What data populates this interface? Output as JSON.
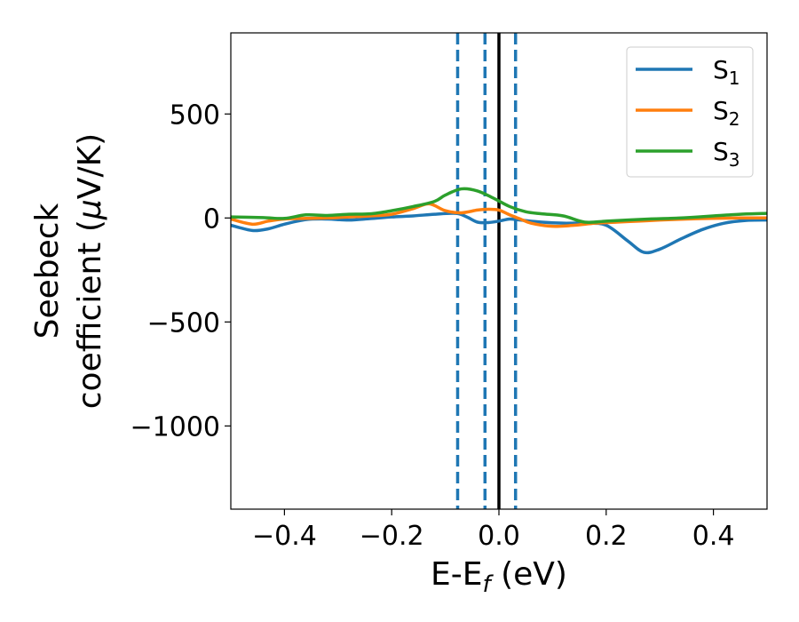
{
  "chart_data": {
    "type": "line",
    "title": "",
    "xlabel": "E-E",
    "xlabel_sub": "f",
    "xlabel_unit": " (eV)",
    "ylabel_line1": "Seebeck",
    "ylabel_line2": "coefficient  (",
    "ylabel_mu": "μ",
    "ylabel_unit": "V/K)",
    "xlim": [
      -0.5,
      0.5
    ],
    "ylim": [
      -1400,
      890
    ],
    "xticks": [
      -0.4,
      -0.2,
      0.0,
      0.2,
      0.4
    ],
    "xtick_labels": [
      "−0.4",
      "−0.2",
      "0.0",
      "0.2",
      "0.4"
    ],
    "yticks": [
      500,
      0,
      -500,
      -1000
    ],
    "ytick_labels": [
      "500",
      "0",
      "−500",
      "−1000"
    ],
    "grid": false,
    "legend_position": "top-right",
    "vlines": [
      {
        "x": -0.077,
        "style": "dashed",
        "color": "#1f77b4"
      },
      {
        "x": -0.026,
        "style": "dashed",
        "color": "#1f77b4"
      },
      {
        "x": 0.0,
        "style": "solid",
        "color": "#000000"
      },
      {
        "x": 0.031,
        "style": "dashed",
        "color": "#1f77b4"
      }
    ],
    "series": [
      {
        "name": "S",
        "sub": "1",
        "color": "#1f77b4",
        "x": [
          -0.5,
          -0.46,
          -0.43,
          -0.4,
          -0.36,
          -0.32,
          -0.28,
          -0.24,
          -0.2,
          -0.16,
          -0.12,
          -0.08,
          -0.06,
          -0.04,
          -0.02,
          0.0,
          0.02,
          0.04,
          0.08,
          0.12,
          0.16,
          0.2,
          0.24,
          0.27,
          0.3,
          0.34,
          0.38,
          0.42,
          0.46,
          0.5
        ],
        "y": [
          -35,
          -60,
          -52,
          -30,
          -8,
          -5,
          -10,
          -3,
          5,
          10,
          18,
          22,
          5,
          -20,
          -22,
          -15,
          -5,
          -10,
          -20,
          -25,
          -25,
          -35,
          -110,
          -165,
          -150,
          -100,
          -55,
          -25,
          -12,
          -10
        ]
      },
      {
        "name": "S",
        "sub": "2",
        "color": "#ff7f0e",
        "x": [
          -0.5,
          -0.46,
          -0.43,
          -0.4,
          -0.36,
          -0.32,
          -0.28,
          -0.24,
          -0.2,
          -0.16,
          -0.13,
          -0.1,
          -0.07,
          -0.04,
          -0.02,
          0.0,
          0.02,
          0.04,
          0.06,
          0.1,
          0.14,
          0.18,
          0.22,
          0.26,
          0.3,
          0.35,
          0.4,
          0.45,
          0.5
        ],
        "y": [
          -5,
          -30,
          -15,
          -5,
          -2,
          0,
          5,
          10,
          18,
          45,
          68,
          35,
          25,
          38,
          42,
          38,
          15,
          -5,
          -25,
          -40,
          -35,
          -25,
          -20,
          -15,
          -10,
          -5,
          -2,
          0,
          0
        ]
      },
      {
        "name": "S",
        "sub": "3",
        "color": "#2ca02c",
        "x": [
          -0.5,
          -0.44,
          -0.4,
          -0.36,
          -0.32,
          -0.28,
          -0.24,
          -0.2,
          -0.16,
          -0.12,
          -0.1,
          -0.07,
          -0.04,
          -0.01,
          0.02,
          0.05,
          0.08,
          0.12,
          0.16,
          0.2,
          0.24,
          0.28,
          0.32,
          0.36,
          0.4,
          0.45,
          0.5
        ],
        "y": [
          5,
          2,
          -2,
          15,
          12,
          18,
          20,
          35,
          55,
          80,
          110,
          140,
          130,
          95,
          55,
          30,
          20,
          10,
          -20,
          -15,
          -10,
          -5,
          -2,
          3,
          10,
          18,
          22
        ]
      }
    ]
  }
}
